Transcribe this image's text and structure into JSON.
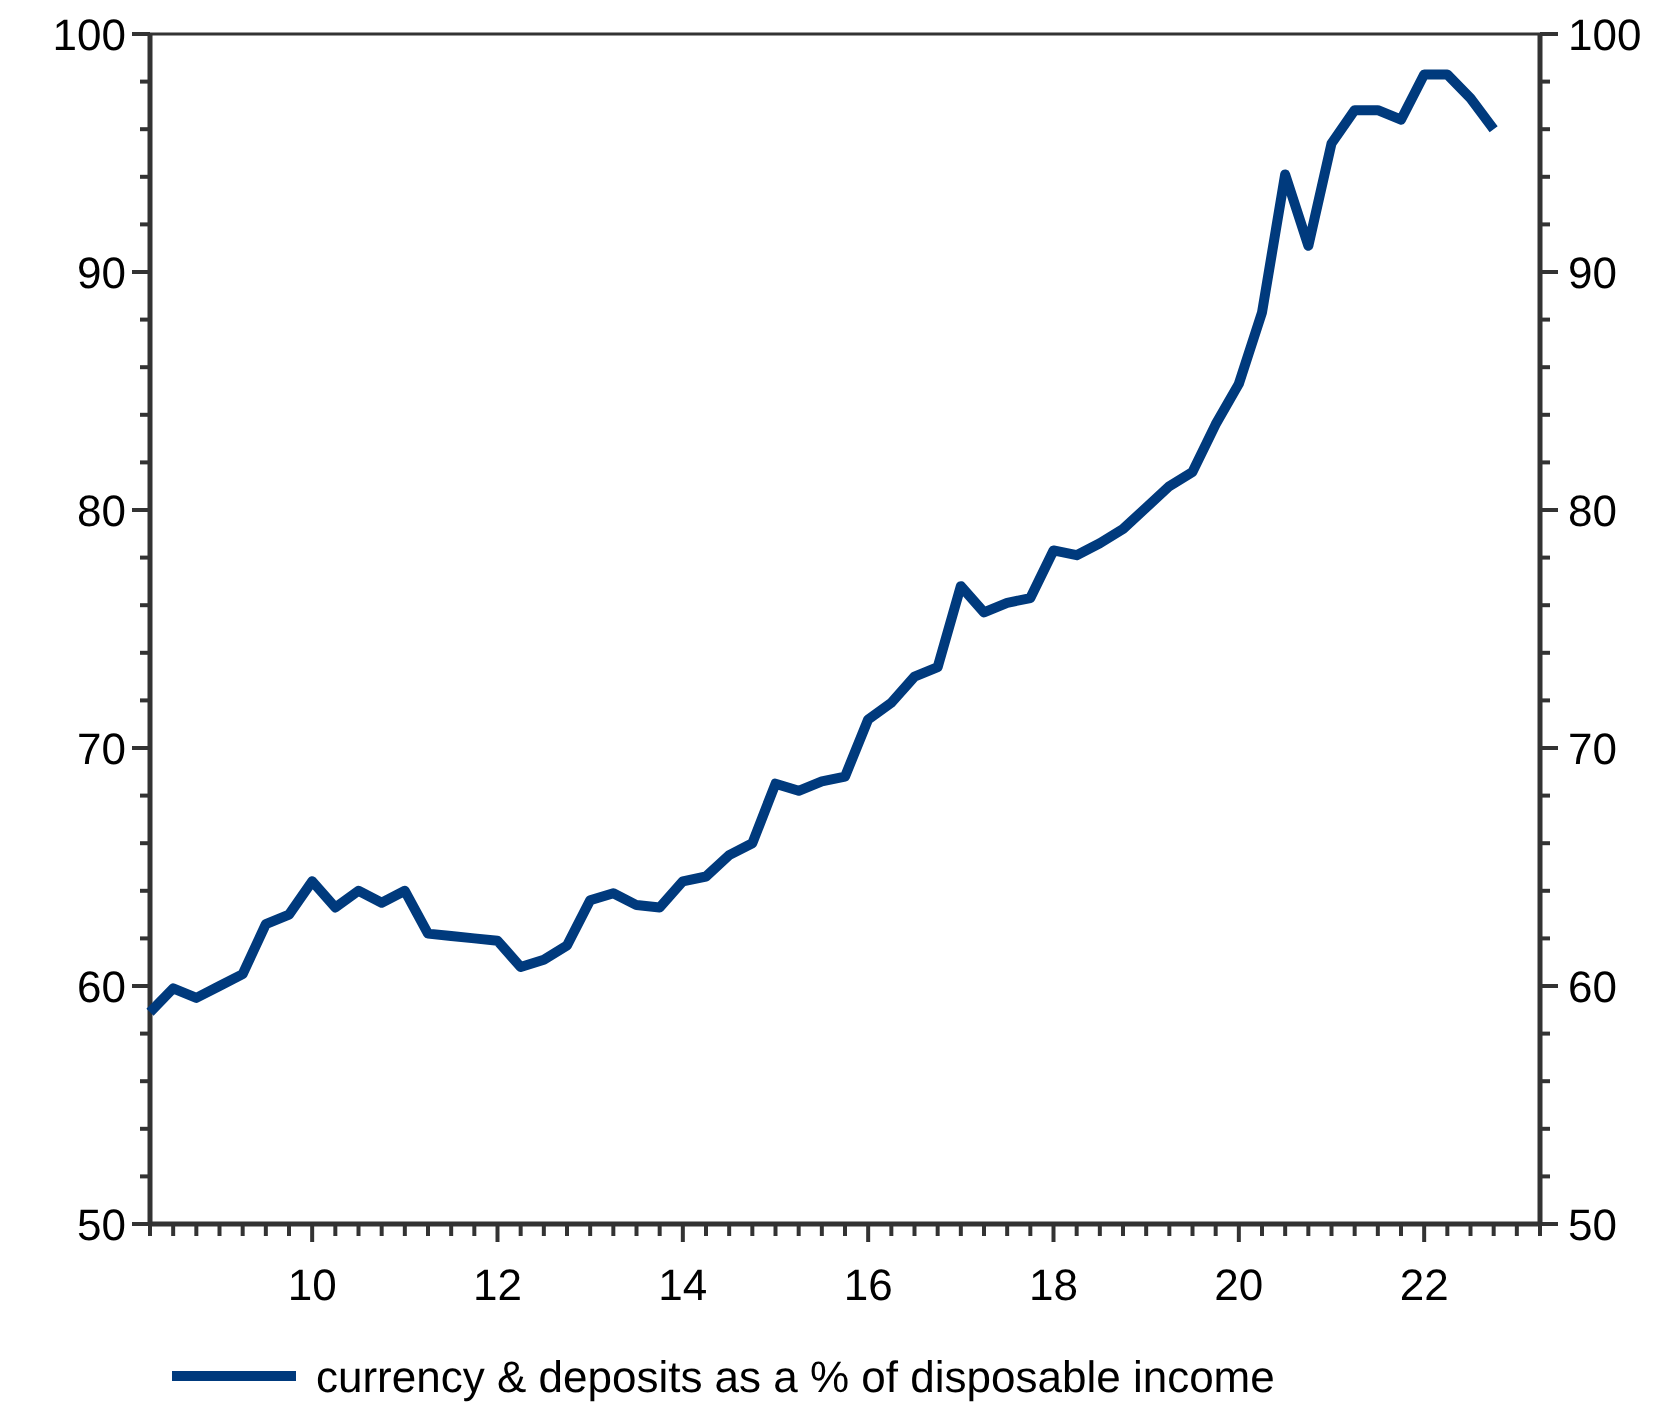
{
  "chart_data": {
    "type": "line",
    "legend": "bottom",
    "xlim": [
      8.25,
      23.25
    ],
    "xticks": [
      {
        "value": 8.25,
        "label": null
      },
      {
        "value": 8.5,
        "label": null
      },
      {
        "value": 8.75,
        "label": null
      },
      {
        "value": 9,
        "label": null
      },
      {
        "value": 9.25,
        "label": null
      },
      {
        "value": 9.5,
        "label": null
      },
      {
        "value": 9.75,
        "label": null
      },
      10,
      {
        "value": 10.25,
        "label": null
      },
      {
        "value": 10.5,
        "label": null
      },
      {
        "value": 10.75,
        "label": null
      },
      {
        "value": 11,
        "label": null
      },
      {
        "value": 11.25,
        "label": null
      },
      {
        "value": 11.5,
        "label": null
      },
      {
        "value": 11.75,
        "label": null
      },
      12,
      {
        "value": 12.25,
        "label": null
      },
      {
        "value": 12.5,
        "label": null
      },
      {
        "value": 12.75,
        "label": null
      },
      {
        "value": 13,
        "label": null
      },
      {
        "value": 13.25,
        "label": null
      },
      {
        "value": 13.5,
        "label": null
      },
      {
        "value": 13.75,
        "label": null
      },
      14,
      {
        "value": 14.25,
        "label": null
      },
      {
        "value": 14.5,
        "label": null
      },
      {
        "value": 14.75,
        "label": null
      },
      {
        "value": 15,
        "label": null
      },
      {
        "value": 15.25,
        "label": null
      },
      {
        "value": 15.5,
        "label": null
      },
      {
        "value": 15.75,
        "label": null
      },
      16,
      {
        "value": 16.25,
        "label": null
      },
      {
        "value": 16.5,
        "label": null
      },
      {
        "value": 16.75,
        "label": null
      },
      {
        "value": 17,
        "label": null
      },
      {
        "value": 17.25,
        "label": null
      },
      {
        "value": 17.5,
        "label": null
      },
      {
        "value": 17.75,
        "label": null
      },
      18,
      {
        "value": 18.25,
        "label": null
      },
      {
        "value": 18.5,
        "label": null
      },
      {
        "value": 18.75,
        "label": null
      },
      {
        "value": 19,
        "label": null
      },
      {
        "value": 19.25,
        "label": null
      },
      {
        "value": 19.5,
        "label": null
      },
      {
        "value": 19.75,
        "label": null
      },
      20,
      {
        "value": 20.25,
        "label": null
      },
      {
        "value": 20.5,
        "label": null
      },
      {
        "value": 20.75,
        "label": null
      },
      {
        "value": 21,
        "label": null
      },
      {
        "value": 21.25,
        "label": null
      },
      {
        "value": 21.5,
        "label": null
      },
      {
        "value": 21.75,
        "label": null
      },
      22,
      {
        "value": 22.25,
        "label": null
      },
      {
        "value": 22.5,
        "label": null
      },
      {
        "value": 22.75,
        "label": null
      },
      {
        "value": 23,
        "label": null
      },
      {
        "value": 23.25,
        "label": null
      }
    ],
    "ylim": [
      50,
      100
    ],
    "yticks": [
      50,
      {
        "value": 52,
        "label": null
      },
      {
        "value": 54,
        "label": null
      },
      {
        "value": 56,
        "label": null
      },
      {
        "value": 58,
        "label": null
      },
      60,
      {
        "value": 62,
        "label": null
      },
      {
        "value": 64,
        "label": null
      },
      {
        "value": 66,
        "label": null
      },
      {
        "value": 68,
        "label": null
      },
      70,
      {
        "value": 72,
        "label": null
      },
      {
        "value": 74,
        "label": null
      },
      {
        "value": 76,
        "label": null
      },
      {
        "value": 78,
        "label": null
      },
      80,
      {
        "value": 82,
        "label": null
      },
      {
        "value": 84,
        "label": null
      },
      {
        "value": 86,
        "label": null
      },
      {
        "value": 88,
        "label": null
      },
      90,
      {
        "value": 92,
        "label": null
      },
      {
        "value": 94,
        "label": null
      },
      {
        "value": 96,
        "label": null
      },
      {
        "value": 98,
        "label": null
      },
      100
    ],
    "y2lim": [
      50,
      100
    ],
    "y2ticks": [
      50,
      {
        "value": 52,
        "label": null
      },
      {
        "value": 54,
        "label": null
      },
      {
        "value": 56,
        "label": null
      },
      {
        "value": 58,
        "label": null
      },
      60,
      {
        "value": 62,
        "label": null
      },
      {
        "value": 64,
        "label": null
      },
      {
        "value": 66,
        "label": null
      },
      {
        "value": 68,
        "label": null
      },
      70,
      {
        "value": 72,
        "label": null
      },
      {
        "value": 74,
        "label": null
      },
      {
        "value": 76,
        "label": null
      },
      {
        "value": 78,
        "label": null
      },
      80,
      {
        "value": 82,
        "label": null
      },
      {
        "value": 84,
        "label": null
      },
      {
        "value": 86,
        "label": null
      },
      {
        "value": 88,
        "label": null
      },
      90,
      {
        "value": 92,
        "label": null
      },
      {
        "value": 94,
        "label": null
      },
      {
        "value": 96,
        "label": null
      },
      {
        "value": 98,
        "label": null
      },
      100
    ],
    "x": [
      8.25,
      8.5,
      8.75,
      9,
      9.25,
      9.5,
      9.75,
      10,
      10.25,
      10.5,
      10.75,
      11,
      11.25,
      11.5,
      11.75,
      12,
      12.25,
      12.5,
      12.75,
      13,
      13.25,
      13.5,
      13.75,
      14,
      14.25,
      14.5,
      14.75,
      15,
      15.25,
      15.5,
      15.75,
      16,
      16.25,
      16.5,
      16.75,
      17,
      17.25,
      17.5,
      17.75,
      18,
      18.25,
      18.5,
      18.75,
      19,
      19.25,
      19.5,
      19.75,
      20,
      20.25,
      20.5,
      20.75,
      21,
      21.25,
      21.5,
      21.75,
      22,
      22.25,
      22.5,
      22.75
    ],
    "series": [
      {
        "name": "currency & deposits as a % of disposable income",
        "color": "#003a7d",
        "values": [
          58.9,
          59.9,
          59.5,
          60.0,
          60.5,
          62.6,
          63.0,
          64.4,
          63.3,
          64.0,
          63.5,
          64.0,
          62.2,
          62.1,
          62.0,
          61.9,
          60.8,
          61.1,
          61.7,
          63.6,
          63.9,
          63.4,
          63.3,
          64.4,
          64.6,
          65.5,
          66.0,
          68.5,
          68.2,
          68.6,
          68.8,
          71.2,
          71.9,
          73.0,
          73.4,
          76.8,
          75.7,
          76.1,
          76.3,
          78.3,
          78.1,
          78.6,
          79.2,
          80.1,
          81.0,
          81.6,
          83.6,
          85.3,
          88.3,
          94.1,
          91.1,
          95.4,
          96.8,
          96.8,
          96.4,
          98.3,
          98.3,
          97.3,
          96.0
        ]
      }
    ]
  }
}
